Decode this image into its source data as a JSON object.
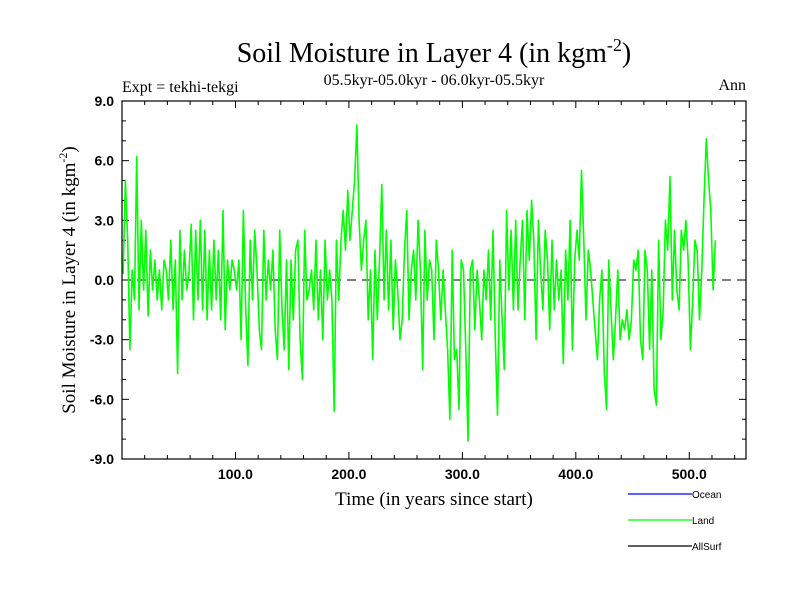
{
  "chart_data": {
    "type": "line",
    "title_main": "Soil Moisture in Layer 4 (in kgm",
    "title_sup": "-2",
    "title_close": ")",
    "subtitle": "05.5kyr-05.0kyr - 06.0kyr-05.5kyr",
    "left_note": "Expt = tekhi-tekgi",
    "right_note": "Ann",
    "xlabel": "Time (in years since start)",
    "ylabel_main": "Soil Moisture in Layer 4 (in kgm",
    "ylabel_sup": "-2",
    "ylabel_close": ")",
    "xlim": [
      0,
      550
    ],
    "ylim": [
      -9,
      9
    ],
    "x_ticks": [
      100,
      200,
      300,
      400,
      500
    ],
    "x_tick_labels": [
      "100.0",
      "200.0",
      "300.0",
      "400.0",
      "500.0"
    ],
    "y_ticks": [
      -9,
      -6,
      -3,
      0,
      3,
      6,
      9
    ],
    "y_tick_labels": [
      "-9.0",
      "-6.0",
      "-3.0",
      "0.0",
      "3.0",
      "6.0",
      "9.0"
    ],
    "reference_line": 0,
    "legend": [
      {
        "name": "Ocean",
        "color": "#0000ff"
      },
      {
        "name": "Land",
        "color": "#00ff00"
      },
      {
        "name": "AllSurf",
        "color": "#000000"
      }
    ],
    "series": [
      {
        "name": "Land",
        "color": "#00ff00",
        "x_start": 1,
        "x_step": 2,
        "values": [
          0.3,
          5.0,
          2.0,
          -3.5,
          0.5,
          -1.0,
          6.2,
          -1.5,
          3.0,
          -0.5,
          2.5,
          -1.8,
          1.5,
          -0.5,
          1.0,
          -1.0,
          0.5,
          -1.5,
          1.0,
          0.5,
          -1.0,
          2.0,
          -1.5,
          1.0,
          -4.7,
          2.5,
          -1.0,
          1.5,
          -0.5,
          0.3,
          2.8,
          -2.0,
          2.5,
          -1.0,
          3.0,
          -1.5,
          2.5,
          -2.0,
          1.5,
          -1.5,
          2.0,
          -1.0,
          1.5,
          -2.0,
          3.5,
          -2.5,
          1.0,
          -0.5,
          1.0,
          0.5,
          -0.5,
          1.0,
          -3.0,
          3.5,
          -1.5,
          -4.3,
          2.0,
          -1.0,
          2.5,
          0.5,
          -2.5,
          -3.5,
          2.5,
          -1.0,
          1.0,
          -0.5,
          1.5,
          -2.5,
          -4.0,
          2.5,
          -1.5,
          -3.5,
          1.0,
          -4.5,
          1.0,
          -2.0,
          1.5,
          2.0,
          -3.0,
          -5.0,
          2.5,
          -1.0,
          -0.5,
          0.5,
          -1.5,
          2.0,
          -2.0,
          0.5,
          -3.0,
          2.0,
          -1.0,
          0.5,
          -1.0,
          -6.6,
          2.0,
          -1.0,
          2.0,
          3.5,
          1.5,
          4.5,
          2.0,
          3.5,
          5.0,
          7.8,
          3.0,
          0.5,
          2.0,
          3.0,
          -2.0,
          0.5,
          -4.0,
          1.5,
          -2.0,
          1.0,
          4.8,
          -1.0,
          2.5,
          -1.5,
          2.0,
          -2.5,
          1.0,
          -0.5,
          -3.0,
          -2.0,
          1.5,
          3.5,
          -2.0,
          0.5,
          1.5,
          -1.0,
          3.0,
          0.5,
          -4.5,
          2.5,
          -1.0,
          1.0,
          0.5,
          -3.0,
          2.0,
          0.5,
          -2.0,
          0.5,
          -1.5,
          -3.5,
          -7.0,
          1.5,
          -4.0,
          -3.5,
          -6.5,
          1.0,
          0.5,
          -3.5,
          -8.1,
          0.5,
          1.0,
          -2.5,
          0.5,
          -1.0,
          -3.0,
          0.5,
          -1.0,
          1.5,
          -2.0,
          2.5,
          -3.0,
          -6.8,
          1.0,
          -2.0,
          -4.5,
          3.5,
          -0.5,
          2.5,
          -1.5,
          3.0,
          -1.5,
          1.0,
          3.0,
          -2.0,
          3.5,
          1.0,
          4.0,
          2.0,
          -3.0,
          3.0,
          0.5,
          -1.5,
          2.5,
          1.0,
          -2.5,
          2.0,
          -1.5,
          1.0,
          -1.0,
          0.5,
          -4.2,
          1.5,
          -1.0,
          3.0,
          -3.5,
          1.0,
          2.5,
          1.0,
          5.5,
          2.0,
          -2.0,
          1.5,
          0.5,
          -1.0,
          -2.5,
          -4.0,
          -1.0,
          0.5,
          -4.5,
          -6.5,
          1.0,
          -1.5,
          -4.0,
          -2.0,
          0.5,
          -3.0,
          -2.0,
          -2.5,
          -1.5,
          -3.0,
          -2.0,
          1.0,
          0.5,
          1.5,
          -3.0,
          -4.0,
          1.5,
          0.5,
          -3.5,
          0.5,
          -5.5,
          -6.3,
          2.0,
          -3.0,
          -1.5,
          3.0,
          1.5,
          5.2,
          -1.0,
          2.5,
          -0.5,
          -1.5,
          2.5,
          1.5,
          3.0,
          1.0,
          -3.5,
          -1.0,
          2.0,
          1.5,
          -2.0,
          0.5,
          4.0,
          7.1,
          5.0,
          3.5,
          -0.5,
          2.0
        ]
      }
    ]
  }
}
